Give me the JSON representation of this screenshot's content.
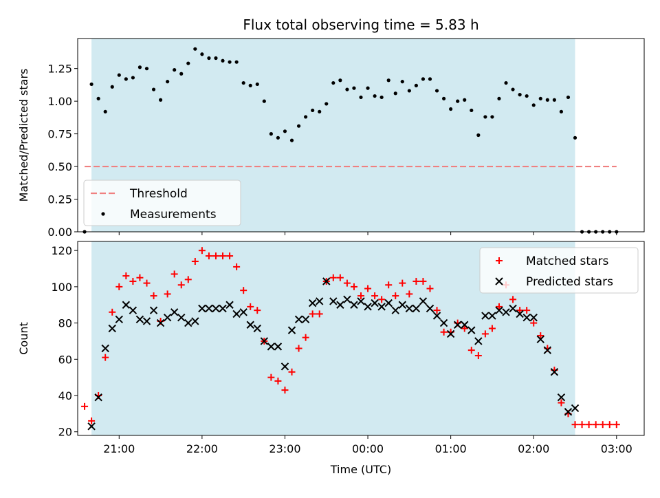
{
  "chart_data": [
    {
      "type": "scatter",
      "title": "Flux total observing time = 5.83 h",
      "xlabel": "",
      "ylabel": "Matched/Predicted stars",
      "ylim": [
        0,
        1.48
      ],
      "xlim": [
        "20:30",
        "03:20"
      ],
      "yticks": [
        "0.00",
        "0.25",
        "0.50",
        "0.75",
        "1.00",
        "1.25"
      ],
      "shaded_region": [
        "20:40",
        "02:30"
      ],
      "shade_color": "#add8e6",
      "legend_position": "lower-left",
      "series": [
        {
          "name": "Threshold",
          "type": "line",
          "style": "dashed",
          "color": "#f08080",
          "x": [
            "20:35",
            "03:00"
          ],
          "y": [
            0.5,
            0.5
          ]
        },
        {
          "name": "Measurements",
          "type": "scatter",
          "marker": "dot",
          "color": "#000000",
          "x": [
            "20:35",
            "20:40",
            "20:45",
            "20:50",
            "20:55",
            "21:00",
            "21:05",
            "21:10",
            "21:15",
            "21:20",
            "21:25",
            "21:30",
            "21:35",
            "21:40",
            "21:45",
            "21:50",
            "21:55",
            "22:00",
            "22:05",
            "22:10",
            "22:15",
            "22:20",
            "22:25",
            "22:30",
            "22:35",
            "22:40",
            "22:45",
            "22:50",
            "22:55",
            "23:00",
            "23:05",
            "23:10",
            "23:15",
            "23:20",
            "23:25",
            "23:30",
            "23:35",
            "23:40",
            "23:45",
            "23:50",
            "23:55",
            "00:00",
            "00:05",
            "00:10",
            "00:15",
            "00:20",
            "00:25",
            "00:30",
            "00:35",
            "00:40",
            "00:45",
            "00:50",
            "00:55",
            "01:00",
            "01:05",
            "01:10",
            "01:15",
            "01:20",
            "01:25",
            "01:30",
            "01:35",
            "01:40",
            "01:45",
            "01:50",
            "01:55",
            "02:00",
            "02:05",
            "02:10",
            "02:15",
            "02:20",
            "02:25",
            "02:30",
            "02:35",
            "02:40",
            "02:45",
            "02:50",
            "02:55",
            "03:00"
          ],
          "y": [
            0.0,
            1.13,
            1.02,
            0.92,
            1.11,
            1.2,
            1.17,
            1.18,
            1.26,
            1.25,
            1.09,
            1.01,
            1.15,
            1.24,
            1.21,
            1.29,
            1.4,
            1.36,
            1.33,
            1.33,
            1.31,
            1.3,
            1.3,
            1.14,
            1.12,
            1.13,
            1.0,
            0.75,
            0.72,
            0.77,
            0.7,
            0.81,
            0.88,
            0.93,
            0.92,
            0.98,
            1.14,
            1.16,
            1.09,
            1.1,
            1.03,
            1.1,
            1.04,
            1.03,
            1.16,
            1.06,
            1.15,
            1.08,
            1.12,
            1.17,
            1.17,
            1.08,
            1.02,
            0.94,
            1.0,
            1.01,
            0.93,
            0.74,
            0.88,
            0.88,
            1.02,
            1.14,
            1.09,
            1.05,
            1.04,
            0.97,
            1.02,
            1.01,
            1.01,
            0.92,
            1.03,
            0.72,
            0.0,
            0.0,
            0.0,
            0.0,
            0.0,
            0.0
          ]
        }
      ]
    },
    {
      "type": "scatter",
      "title": "",
      "xlabel": "Time (UTC)",
      "ylabel": "Count",
      "ylim": [
        18,
        125
      ],
      "xlim": [
        "20:30",
        "03:20"
      ],
      "yticks": [
        "20",
        "40",
        "60",
        "80",
        "100",
        "120"
      ],
      "xticks": [
        "21:00",
        "22:00",
        "23:00",
        "00:00",
        "01:00",
        "02:00",
        "03:00"
      ],
      "shaded_region": [
        "20:40",
        "02:30"
      ],
      "shade_color": "#add8e6",
      "legend_position": "upper-right",
      "series": [
        {
          "name": "Matched stars",
          "type": "scatter",
          "marker": "plus",
          "color": "#ff0000",
          "x": [
            "20:35",
            "20:40",
            "20:45",
            "20:50",
            "20:55",
            "21:00",
            "21:05",
            "21:10",
            "21:15",
            "21:20",
            "21:25",
            "21:30",
            "21:35",
            "21:40",
            "21:45",
            "21:50",
            "21:55",
            "22:00",
            "22:05",
            "22:10",
            "22:15",
            "22:20",
            "22:25",
            "22:30",
            "22:35",
            "22:40",
            "22:45",
            "22:50",
            "22:55",
            "23:00",
            "23:05",
            "23:10",
            "23:15",
            "23:20",
            "23:25",
            "23:30",
            "23:35",
            "23:40",
            "23:45",
            "23:50",
            "23:55",
            "00:00",
            "00:05",
            "00:10",
            "00:15",
            "00:20",
            "00:25",
            "00:30",
            "00:35",
            "00:40",
            "00:45",
            "00:50",
            "00:55",
            "01:00",
            "01:05",
            "01:10",
            "01:15",
            "01:20",
            "01:25",
            "01:30",
            "01:35",
            "01:40",
            "01:45",
            "01:50",
            "01:55",
            "02:00",
            "02:05",
            "02:10",
            "02:15",
            "02:20",
            "02:25",
            "02:30",
            "02:35",
            "02:40",
            "02:45",
            "02:50",
            "02:55",
            "03:00"
          ],
          "y": [
            34,
            26,
            40,
            61,
            86,
            100,
            106,
            103,
            105,
            102,
            95,
            81,
            96,
            107,
            101,
            104,
            114,
            120,
            117,
            117,
            117,
            117,
            111,
            98,
            89,
            87,
            70,
            50,
            48,
            43,
            53,
            66,
            72,
            85,
            85,
            103,
            105,
            105,
            102,
            100,
            95,
            99,
            95,
            93,
            101,
            95,
            102,
            96,
            103,
            103,
            99,
            87,
            75,
            75,
            80,
            77,
            65,
            62,
            74,
            77,
            89,
            101,
            93,
            87,
            87,
            80,
            73,
            66,
            54,
            36,
            30,
            24,
            24,
            24,
            24,
            24,
            24,
            24
          ]
        },
        {
          "name": "Predicted stars",
          "type": "scatter",
          "marker": "x",
          "color": "#000000",
          "x": [
            "20:40",
            "20:45",
            "20:50",
            "20:55",
            "21:00",
            "21:05",
            "21:10",
            "21:15",
            "21:20",
            "21:25",
            "21:30",
            "21:35",
            "21:40",
            "21:45",
            "21:50",
            "21:55",
            "22:00",
            "22:05",
            "22:10",
            "22:15",
            "22:20",
            "22:25",
            "22:30",
            "22:35",
            "22:40",
            "22:45",
            "22:50",
            "22:55",
            "23:00",
            "23:05",
            "23:10",
            "23:15",
            "23:20",
            "23:25",
            "23:30",
            "23:35",
            "23:40",
            "23:45",
            "23:50",
            "23:55",
            "00:00",
            "00:05",
            "00:10",
            "00:15",
            "00:20",
            "00:25",
            "00:30",
            "00:35",
            "00:40",
            "00:45",
            "00:50",
            "00:55",
            "01:00",
            "01:05",
            "01:10",
            "01:15",
            "01:20",
            "01:25",
            "01:30",
            "01:35",
            "01:40",
            "01:45",
            "01:50",
            "01:55",
            "02:00",
            "02:05",
            "02:10",
            "02:15",
            "02:20",
            "02:25",
            "02:30"
          ],
          "y": [
            23,
            39,
            66,
            77,
            82,
            90,
            87,
            82,
            81,
            87,
            80,
            83,
            86,
            83,
            80,
            81,
            88,
            88,
            88,
            88,
            90,
            85,
            86,
            79,
            77,
            70,
            67,
            67,
            56,
            76,
            82,
            82,
            91,
            92,
            103,
            92,
            90,
            93,
            90,
            92,
            89,
            91,
            89,
            91,
            87,
            90,
            88,
            88,
            92,
            88,
            84,
            80,
            74,
            79,
            79,
            76,
            70,
            84,
            84,
            87,
            86,
            88,
            85,
            83,
            83,
            71,
            65,
            53,
            39,
            31,
            33
          ]
        }
      ]
    }
  ]
}
